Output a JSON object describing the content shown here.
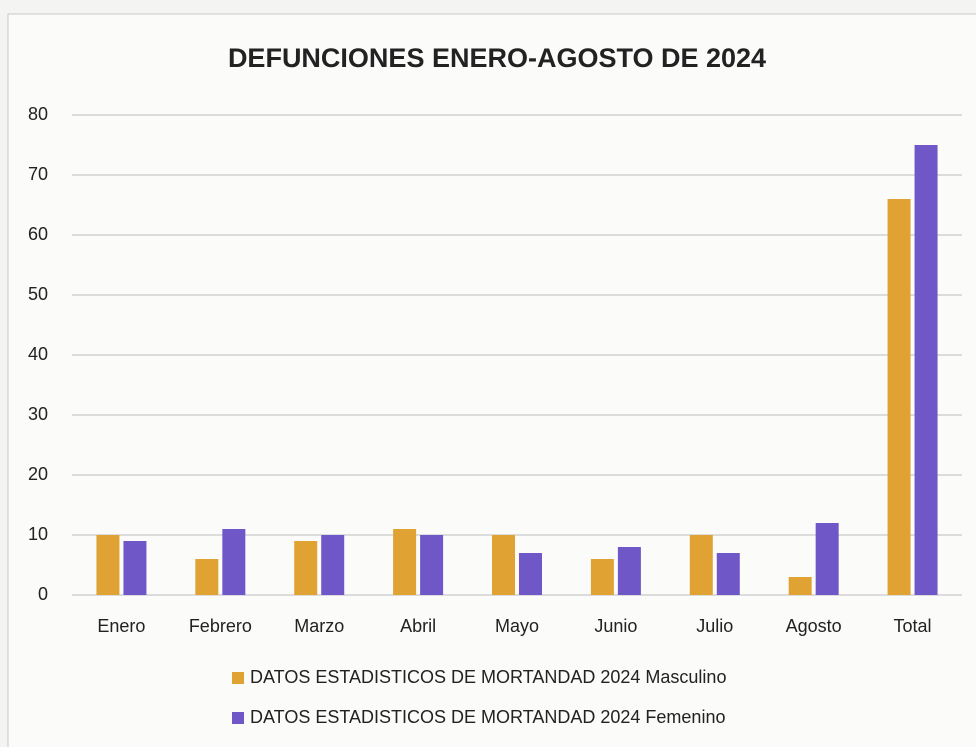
{
  "chart_data": {
    "type": "bar",
    "title": "DEFUNCIONES ENERO-AGOSTO DE 2024",
    "categories": [
      "Enero",
      "Febrero",
      "Marzo",
      "Abril",
      "Mayo",
      "Junio",
      "Julio",
      "Agosto",
      "Total"
    ],
    "series": [
      {
        "name": "DATOS ESTADISTICOS DE MORTANDAD 2024 Masculino",
        "color": "#e0a232",
        "values": [
          10,
          6,
          9,
          11,
          10,
          6,
          10,
          3,
          66
        ]
      },
      {
        "name": "DATOS ESTADISTICOS DE MORTANDAD 2024 Femenino",
        "color": "#7057c8",
        "values": [
          9,
          11,
          10,
          10,
          7,
          8,
          7,
          12,
          75
        ]
      }
    ],
    "ylim": [
      0,
      80
    ],
    "yticks": [
      0,
      10,
      20,
      30,
      40,
      50,
      60,
      70,
      80
    ],
    "grid": true,
    "legend": "bottom"
  }
}
